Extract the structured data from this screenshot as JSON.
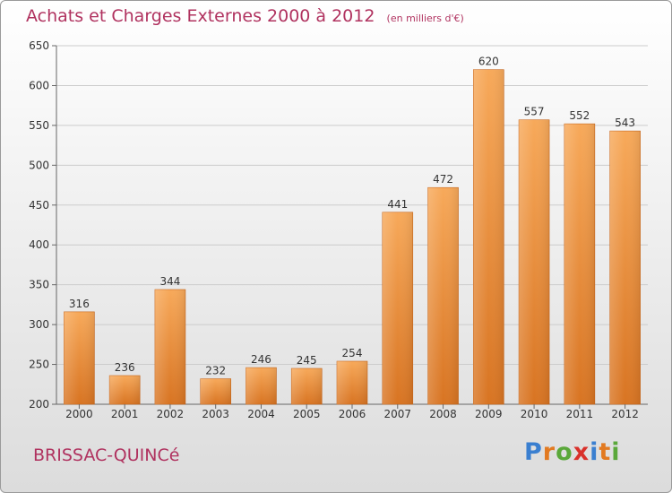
{
  "header": {
    "title": "Achats et Charges Externes 2000 à 2012",
    "subtitle": "(en milliers d'€)"
  },
  "footer": {
    "commune": "BRISSAC-QUINCé",
    "brand": "Proxiti"
  },
  "colors": {
    "title": "#b0325f",
    "bar_light": "#f7a95a",
    "bar_dark": "#d87422",
    "grid": "#cccccc",
    "brand_letters": [
      "#3a7fd0",
      "#e27a21",
      "#5aa83a",
      "#d9312b",
      "#3a7fd0",
      "#e27a21",
      "#5aa83a"
    ]
  },
  "chart_data": {
    "type": "bar",
    "categories": [
      "2000",
      "2001",
      "2002",
      "2003",
      "2004",
      "2005",
      "2006",
      "2007",
      "2008",
      "2009",
      "2010",
      "2011",
      "2012"
    ],
    "values": [
      316,
      236,
      344,
      232,
      246,
      245,
      254,
      441,
      472,
      620,
      557,
      552,
      543
    ],
    "title": "Achats et Charges Externes 2000 à 2012",
    "subtitle": "(en milliers d'€)",
    "xlabel": "",
    "ylabel": "",
    "ylim": [
      200,
      650
    ],
    "yticks": [
      200,
      250,
      300,
      350,
      400,
      450,
      500,
      550,
      600,
      650
    ],
    "grid": true,
    "data_labels": true
  }
}
